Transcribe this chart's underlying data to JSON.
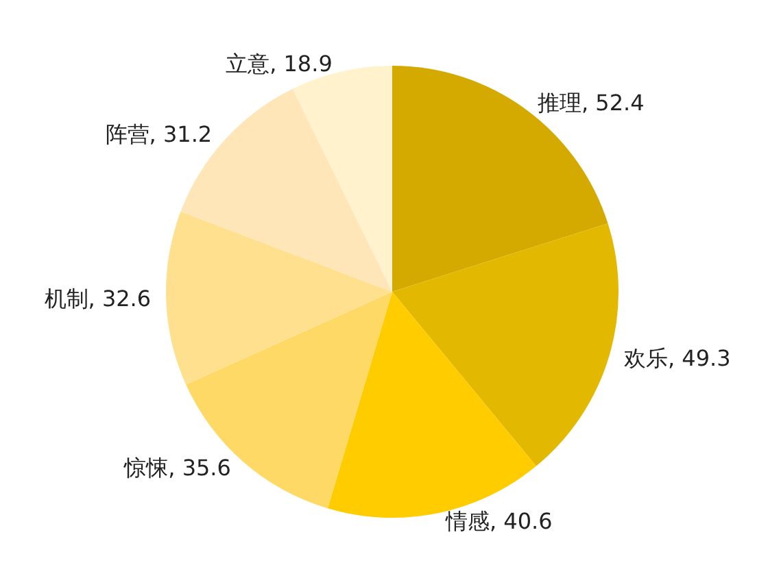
{
  "chart_data": {
    "type": "pie",
    "categories": [
      "推理",
      "欢乐",
      "情感",
      "惊悚",
      "机制",
      "阵营",
      "立意"
    ],
    "values": [
      52.4,
      49.3,
      40.6,
      35.6,
      32.6,
      31.2,
      18.9
    ],
    "value_labels": [
      ", 52.4",
      ", 49.3",
      ", 40.6",
      ", 35.6",
      ", 32.6",
      ", 31.2",
      ", 18.9"
    ],
    "colors": [
      "#d4aa00",
      "#e2b900",
      "#ffcc00",
      "#ffd966",
      "#ffe08f",
      "#ffe6b8",
      "#fff2cc"
    ],
    "legend": false
  }
}
